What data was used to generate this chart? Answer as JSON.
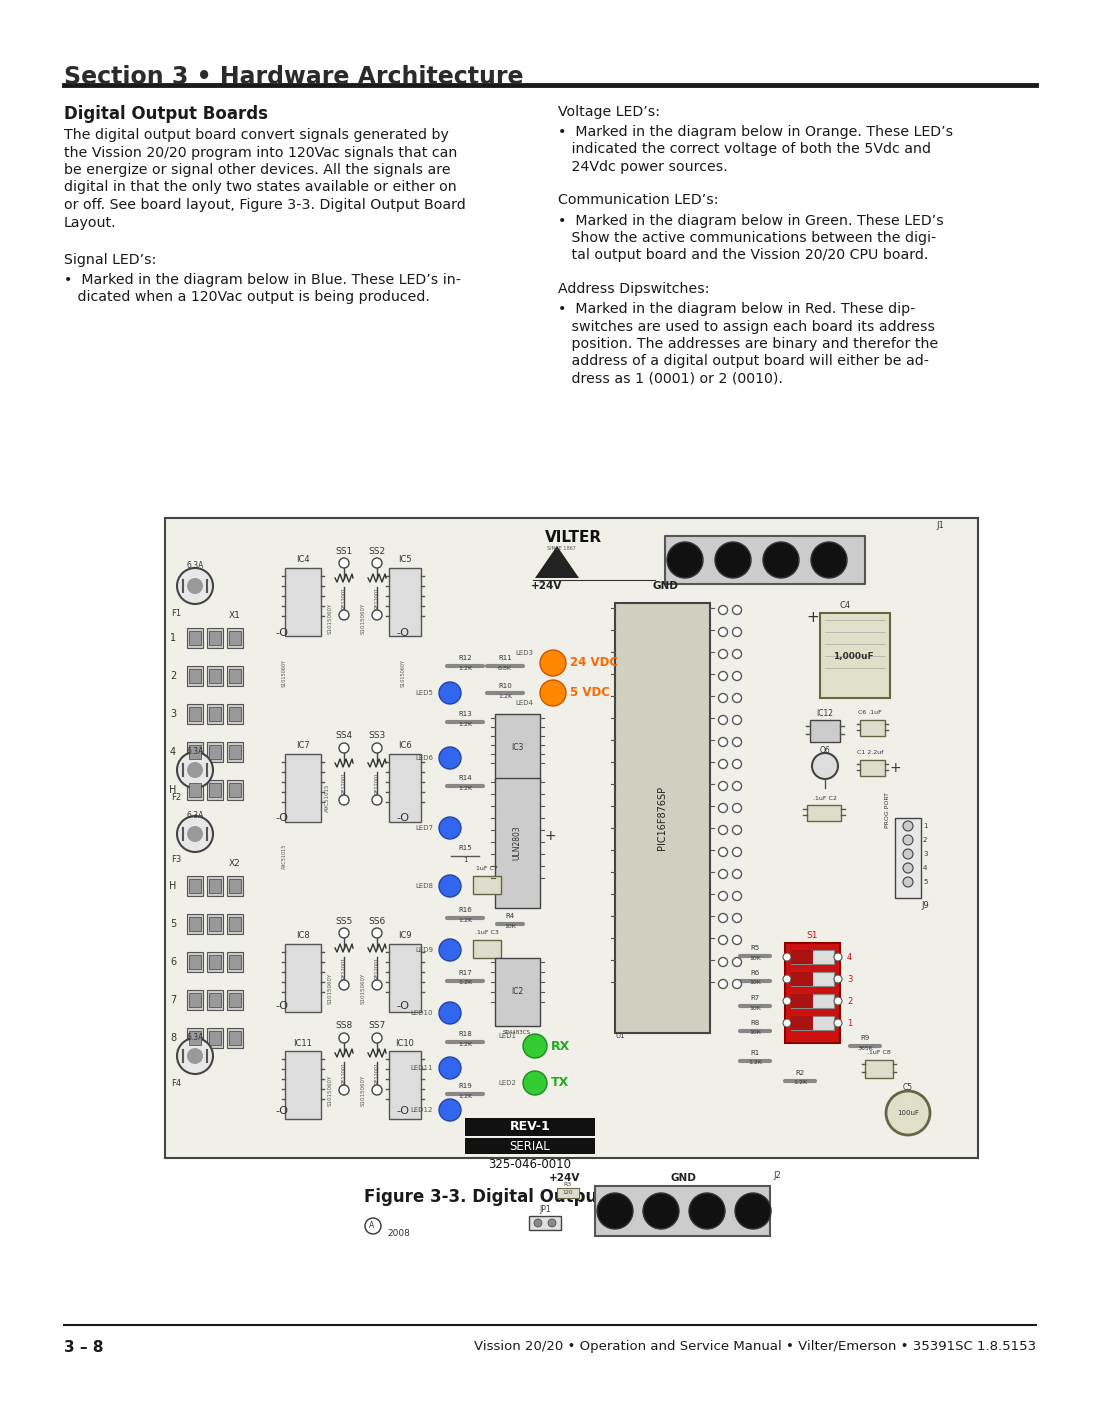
{
  "page_bg": "#ffffff",
  "header_title": "Section 3 • Hardware Architecture",
  "section_title": "Digital Output Boards",
  "body_left": [
    "The digital output board convert signals generated by",
    "the Vission 20/20 program into 120Vac signals that can",
    "be energize or signal other devices. All the signals are",
    "digital in that the only two states available or either on",
    "or off. See board layout, Figure 3-3. Digital Output Board",
    "Layout."
  ],
  "body_left2": "Signal LED’s:",
  "bullet_left": [
    "•  Marked in the diagram below in Blue. These LED’s in-",
    "   dicated when a 120Vac output is being produced."
  ],
  "body_right1": "Voltage LED’s:",
  "bullet_right1": [
    "•  Marked in the diagram below in Orange. These LED’s",
    "   indicated the correct voltage of both the 5Vdc and",
    "   24Vdc power sources."
  ],
  "body_right2": "Communication LED’s:",
  "bullet_right2": [
    "•  Marked in the diagram below in Green. These LED’s",
    "   Show the active communications between the digi-",
    "   tal output board and the Vission 20/20 CPU board."
  ],
  "body_right3": "Address Dipswitches:",
  "bullet_right3": [
    "•  Marked in the diagram below in Red. These dip-",
    "   switches are used to assign each board its address",
    "   position. The addresses are binary and therefor the",
    "   address of a digital output board will either be ad-",
    "   dress as 1 (0001) or 2 (0010)."
  ],
  "figure_caption": "Figure 3-3. Digital Output Board Layout",
  "footer_left": "3 – 8",
  "footer_right": "Vission 20/20 • Operation and Service Manual • Vilter/Emerson • 35391SC 1.8.5153"
}
